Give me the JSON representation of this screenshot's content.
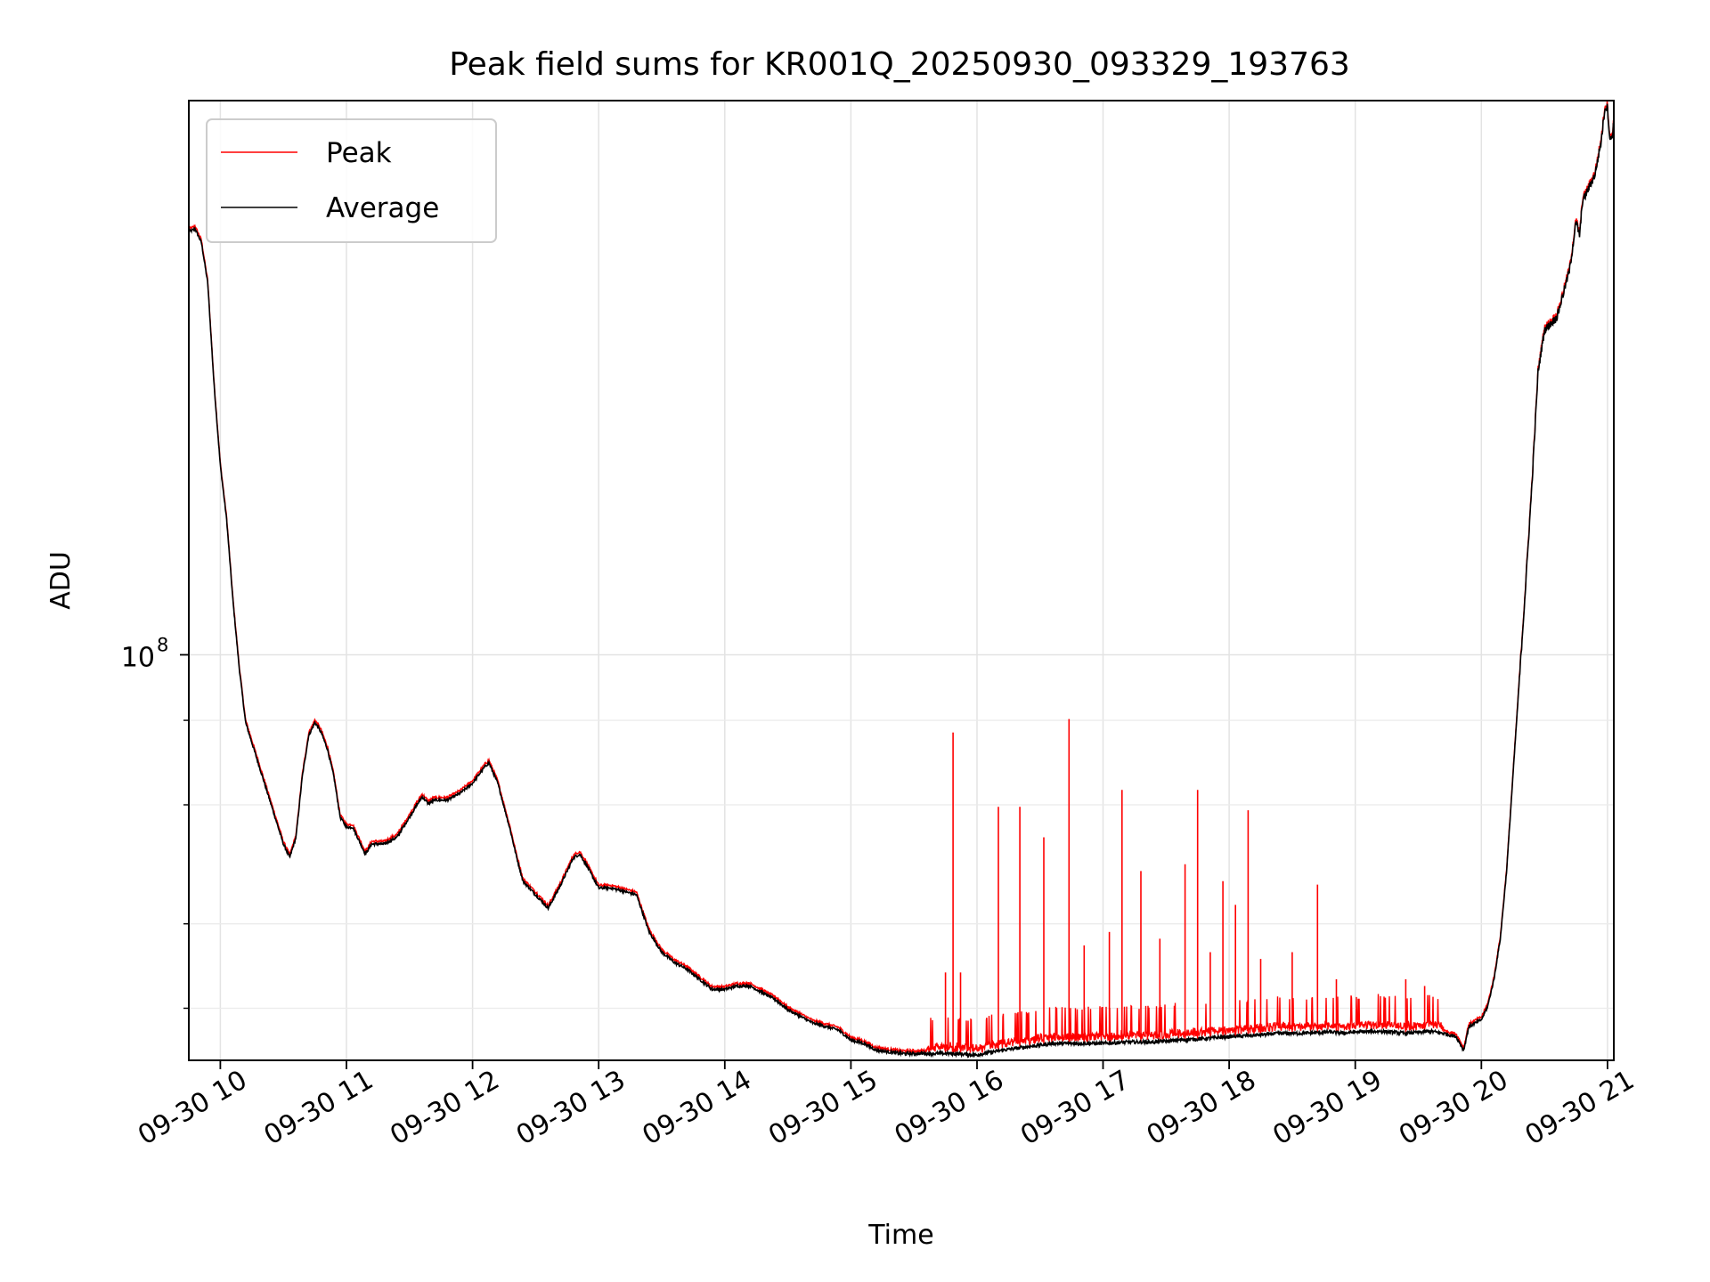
{
  "chart_data": {
    "type": "line",
    "title": "Peak field sums for KR001Q_20250930_093329_193763",
    "xlabel": "Time",
    "ylabel": "ADU",
    "y_scale": "log",
    "x_unit": "hours (2025-09-30)",
    "xlim": [
      9.75,
      21.05
    ],
    "ylim_log10": [
      7.4,
      8.82
    ],
    "grid": true,
    "legend_position": "top-left",
    "x_ticks": [
      {
        "value": 10,
        "label": "09-30 10"
      },
      {
        "value": 11,
        "label": "09-30 11"
      },
      {
        "value": 12,
        "label": "09-30 12"
      },
      {
        "value": 13,
        "label": "09-30 13"
      },
      {
        "value": 14,
        "label": "09-30 14"
      },
      {
        "value": 15,
        "label": "09-30 15"
      },
      {
        "value": 16,
        "label": "09-30 16"
      },
      {
        "value": 17,
        "label": "09-30 17"
      },
      {
        "value": 18,
        "label": "09-30 18"
      },
      {
        "value": 19,
        "label": "09-30 19"
      },
      {
        "value": 20,
        "label": "09-30 20"
      },
      {
        "value": 21,
        "label": "09-30 21"
      }
    ],
    "y_major_ticks": [
      {
        "log10": 8,
        "base": "10",
        "exp": "8"
      }
    ],
    "y_minor_ticks_log10": [
      7.477,
      7.602,
      7.778,
      7.903
    ],
    "series": [
      {
        "name": "Peak",
        "color": "#ff0000"
      },
      {
        "name": "Average",
        "color": "#000000"
      }
    ],
    "average_log10": [
      [
        9.75,
        8.626
      ],
      [
        9.8,
        8.63
      ],
      [
        9.85,
        8.61
      ],
      [
        9.9,
        8.55
      ],
      [
        9.95,
        8.4
      ],
      [
        10.0,
        8.28
      ],
      [
        10.05,
        8.2
      ],
      [
        10.1,
        8.08
      ],
      [
        10.15,
        7.98
      ],
      [
        10.2,
        7.9
      ],
      [
        10.3,
        7.84
      ],
      [
        10.4,
        7.78
      ],
      [
        10.5,
        7.72
      ],
      [
        10.55,
        7.7
      ],
      [
        10.6,
        7.73
      ],
      [
        10.65,
        7.82
      ],
      [
        10.7,
        7.88
      ],
      [
        10.75,
        7.9
      ],
      [
        10.8,
        7.885
      ],
      [
        10.85,
        7.86
      ],
      [
        10.9,
        7.82
      ],
      [
        10.95,
        7.76
      ],
      [
        11.0,
        7.745
      ],
      [
        11.05,
        7.745
      ],
      [
        11.1,
        7.725
      ],
      [
        11.15,
        7.705
      ],
      [
        11.2,
        7.72
      ],
      [
        11.3,
        7.72
      ],
      [
        11.4,
        7.73
      ],
      [
        11.5,
        7.76
      ],
      [
        11.6,
        7.79
      ],
      [
        11.65,
        7.78
      ],
      [
        11.7,
        7.785
      ],
      [
        11.8,
        7.785
      ],
      [
        11.9,
        7.795
      ],
      [
        12.0,
        7.81
      ],
      [
        12.1,
        7.835
      ],
      [
        12.13,
        7.84
      ],
      [
        12.2,
        7.81
      ],
      [
        12.3,
        7.74
      ],
      [
        12.35,
        7.7
      ],
      [
        12.4,
        7.665
      ],
      [
        12.5,
        7.645
      ],
      [
        12.6,
        7.625
      ],
      [
        12.7,
        7.66
      ],
      [
        12.8,
        7.7
      ],
      [
        12.85,
        7.705
      ],
      [
        12.9,
        7.69
      ],
      [
        13.0,
        7.655
      ],
      [
        13.1,
        7.655
      ],
      [
        13.2,
        7.65
      ],
      [
        13.3,
        7.645
      ],
      [
        13.4,
        7.59
      ],
      [
        13.5,
        7.56
      ],
      [
        13.6,
        7.545
      ],
      [
        13.7,
        7.535
      ],
      [
        13.8,
        7.52
      ],
      [
        13.9,
        7.505
      ],
      [
        14.0,
        7.505
      ],
      [
        14.1,
        7.51
      ],
      [
        14.2,
        7.51
      ],
      [
        14.3,
        7.5
      ],
      [
        14.4,
        7.49
      ],
      [
        14.5,
        7.475
      ],
      [
        14.6,
        7.465
      ],
      [
        14.7,
        7.455
      ],
      [
        14.8,
        7.45
      ],
      [
        14.9,
        7.445
      ],
      [
        15.0,
        7.43
      ],
      [
        15.1,
        7.425
      ],
      [
        15.2,
        7.415
      ],
      [
        15.4,
        7.41
      ],
      [
        15.6,
        7.41
      ],
      [
        15.8,
        7.41
      ],
      [
        16.0,
        7.408
      ],
      [
        16.2,
        7.415
      ],
      [
        16.4,
        7.42
      ],
      [
        16.6,
        7.425
      ],
      [
        16.8,
        7.425
      ],
      [
        17.0,
        7.425
      ],
      [
        17.2,
        7.427
      ],
      [
        17.4,
        7.427
      ],
      [
        17.6,
        7.43
      ],
      [
        17.8,
        7.432
      ],
      [
        18.0,
        7.435
      ],
      [
        18.2,
        7.437
      ],
      [
        18.4,
        7.44
      ],
      [
        18.6,
        7.44
      ],
      [
        18.8,
        7.442
      ],
      [
        18.9,
        7.44
      ],
      [
        19.0,
        7.442
      ],
      [
        19.2,
        7.443
      ],
      [
        19.4,
        7.44
      ],
      [
        19.6,
        7.443
      ],
      [
        19.7,
        7.44
      ],
      [
        19.8,
        7.435
      ],
      [
        19.86,
        7.415
      ],
      [
        19.9,
        7.45
      ],
      [
        20.0,
        7.46
      ],
      [
        20.05,
        7.48
      ],
      [
        20.1,
        7.52
      ],
      [
        20.15,
        7.58
      ],
      [
        20.2,
        7.68
      ],
      [
        20.25,
        7.82
      ],
      [
        20.3,
        7.96
      ],
      [
        20.35,
        8.1
      ],
      [
        20.4,
        8.25
      ],
      [
        20.45,
        8.42
      ],
      [
        20.5,
        8.48
      ],
      [
        20.6,
        8.5
      ],
      [
        20.7,
        8.57
      ],
      [
        20.75,
        8.64
      ],
      [
        20.78,
        8.62
      ],
      [
        20.8,
        8.67
      ],
      [
        20.85,
        8.69
      ],
      [
        20.9,
        8.71
      ],
      [
        20.95,
        8.76
      ],
      [
        20.98,
        8.81
      ],
      [
        21.0,
        8.81
      ],
      [
        21.02,
        8.76
      ],
      [
        21.04,
        8.77
      ],
      [
        21.05,
        8.79
      ]
    ],
    "peak_spikes": [
      {
        "x": 15.75,
        "log10": 7.53
      },
      {
        "x": 15.81,
        "log10": 7.885
      },
      {
        "x": 15.87,
        "log10": 7.53
      },
      {
        "x": 16.17,
        "log10": 7.775
      },
      {
        "x": 16.34,
        "log10": 7.775
      },
      {
        "x": 16.53,
        "log10": 7.73
      },
      {
        "x": 16.73,
        "log10": 7.905
      },
      {
        "x": 16.85,
        "log10": 7.57
      },
      {
        "x": 17.05,
        "log10": 7.59
      },
      {
        "x": 17.15,
        "log10": 7.8
      },
      {
        "x": 17.3,
        "log10": 7.68
      },
      {
        "x": 17.45,
        "log10": 7.58
      },
      {
        "x": 17.65,
        "log10": 7.69
      },
      {
        "x": 17.75,
        "log10": 7.8
      },
      {
        "x": 17.85,
        "log10": 7.56
      },
      {
        "x": 17.95,
        "log10": 7.665
      },
      {
        "x": 18.05,
        "log10": 7.63
      },
      {
        "x": 18.15,
        "log10": 7.77
      },
      {
        "x": 18.25,
        "log10": 7.55
      },
      {
        "x": 18.5,
        "log10": 7.56
      },
      {
        "x": 18.7,
        "log10": 7.66
      },
      {
        "x": 18.85,
        "log10": 7.52
      },
      {
        "x": 19.4,
        "log10": 7.52
      },
      {
        "x": 19.55,
        "log10": 7.51
      }
    ]
  }
}
